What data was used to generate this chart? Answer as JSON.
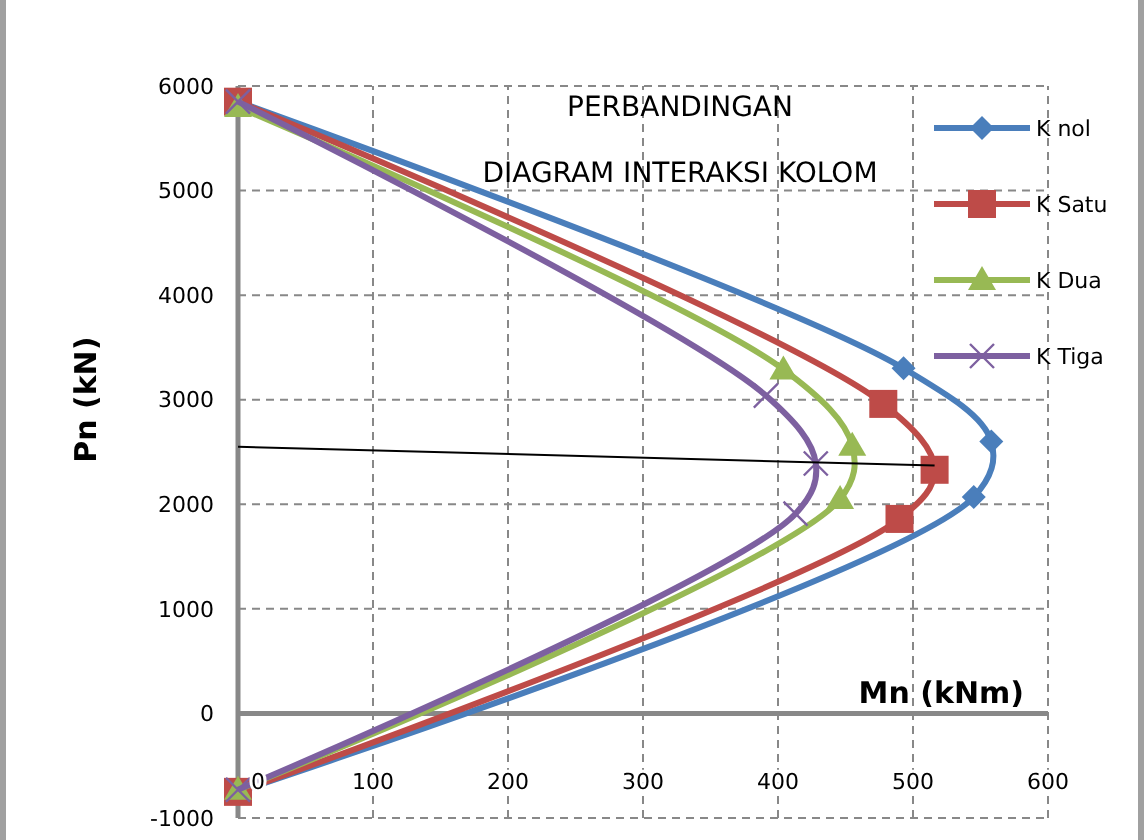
{
  "chart_data": {
    "type": "line",
    "title": "PERBANDINGAN",
    "subtitle": "DIAGRAM INTERAKSI KOLOM",
    "xlabel": "Mn (kNm)",
    "ylabel": "Pn (kN)",
    "xlim": [
      0,
      600
    ],
    "xticks": [
      0,
      100,
      200,
      300,
      400,
      500,
      600
    ],
    "ylim": [
      -1000,
      6000
    ],
    "yticks": [
      -1000,
      0,
      1000,
      2000,
      3000,
      4000,
      5000,
      6000
    ],
    "grid": true,
    "legend": "right",
    "series": [
      {
        "name": "K nol",
        "color": "#4a7ebb",
        "marker": "diamond",
        "x": [
          0,
          493,
          558,
          545,
          0
        ],
        "values": [
          5850,
          3300,
          2600,
          2070,
          -750
        ]
      },
      {
        "name": "K Satu",
        "color": "#be4b48",
        "marker": "square",
        "x": [
          0,
          478,
          516,
          490,
          0
        ],
        "values": [
          5850,
          2960,
          2330,
          1860,
          -750
        ]
      },
      {
        "name": "K Dua",
        "color": "#98b954",
        "marker": "triangle",
        "x": [
          0,
          404,
          455,
          446,
          0
        ],
        "values": [
          5800,
          3290,
          2560,
          2050,
          -730
        ]
      },
      {
        "name": "K Tiga",
        "color": "#7d60a0",
        "marker": "cross",
        "x": [
          0,
          391,
          428,
          413,
          0
        ],
        "values": [
          5850,
          3040,
          2390,
          1910,
          -730
        ]
      },
      {
        "color": "#000000",
        "marker": "none",
        "x": [
          0,
          516
        ],
        "values": [
          2550,
          2370
        ]
      }
    ]
  }
}
